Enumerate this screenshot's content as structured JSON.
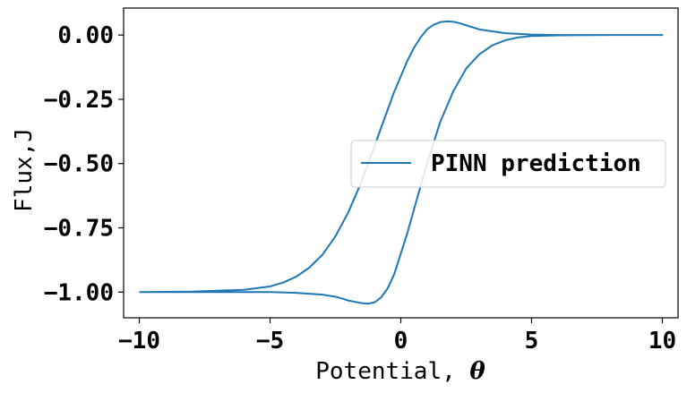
{
  "chart_data": {
    "type": "line",
    "xlabel_text": "Potential, ",
    "xlabel_symbol": "θ",
    "ylabel": "Flux,J",
    "xlim": [
      -10.6,
      10.6
    ],
    "ylim": [
      -1.1,
      0.105
    ],
    "xticks": [
      -10,
      -5,
      0,
      5,
      10
    ],
    "xtick_labels": [
      "−10",
      "−5",
      "0",
      "5",
      "10"
    ],
    "yticks": [
      0.0,
      -0.25,
      -0.5,
      -0.75,
      -1.0
    ],
    "ytick_labels": [
      "0.00",
      "−0.25",
      "−0.50",
      "−0.75",
      "−1.00"
    ],
    "legend_position": "center-right",
    "line_color": "#1f77b4",
    "series": [
      {
        "name": "PINN prediction",
        "x": [
          -10,
          -8,
          -6,
          -5,
          -4.5,
          -4,
          -3.5,
          -3,
          -2.5,
          -2,
          -1.5,
          -1.25,
          -1,
          -0.75,
          -0.5,
          -0.25,
          0,
          0.25,
          0.5,
          0.75,
          1,
          1.25,
          1.5,
          1.75,
          2,
          2.25,
          2.5,
          3,
          4,
          5,
          6,
          8,
          10,
          10,
          8,
          6,
          5,
          4.5,
          4,
          3.5,
          3,
          2.5,
          2,
          1.5,
          1.25,
          1,
          0.75,
          0.5,
          0.25,
          0,
          -0.25,
          -0.5,
          -0.75,
          -1,
          -1.25,
          -1.5,
          -1.75,
          -2,
          -2.25,
          -2.5,
          -3,
          -4,
          -5,
          -6,
          -8,
          -10
        ],
        "y": [
          -1.0,
          -0.998,
          -0.991,
          -0.978,
          -0.963,
          -0.94,
          -0.905,
          -0.855,
          -0.783,
          -0.688,
          -0.57,
          -0.5,
          -0.43,
          -0.36,
          -0.29,
          -0.22,
          -0.16,
          -0.1,
          -0.05,
          -0.01,
          0.022,
          0.04,
          0.05,
          0.053,
          0.052,
          0.046,
          0.038,
          0.022,
          0.007,
          0.002,
          0.0,
          0.0,
          0.0,
          0.0,
          0.0,
          -0.001,
          -0.004,
          -0.009,
          -0.02,
          -0.04,
          -0.075,
          -0.13,
          -0.22,
          -0.34,
          -0.42,
          -0.5,
          -0.59,
          -0.68,
          -0.77,
          -0.85,
          -0.93,
          -0.985,
          -1.02,
          -1.04,
          -1.045,
          -1.043,
          -1.038,
          -1.033,
          -1.025,
          -1.018,
          -1.01,
          -1.003,
          -1.0,
          -1.0,
          -1.0,
          -1.0
        ]
      }
    ]
  }
}
